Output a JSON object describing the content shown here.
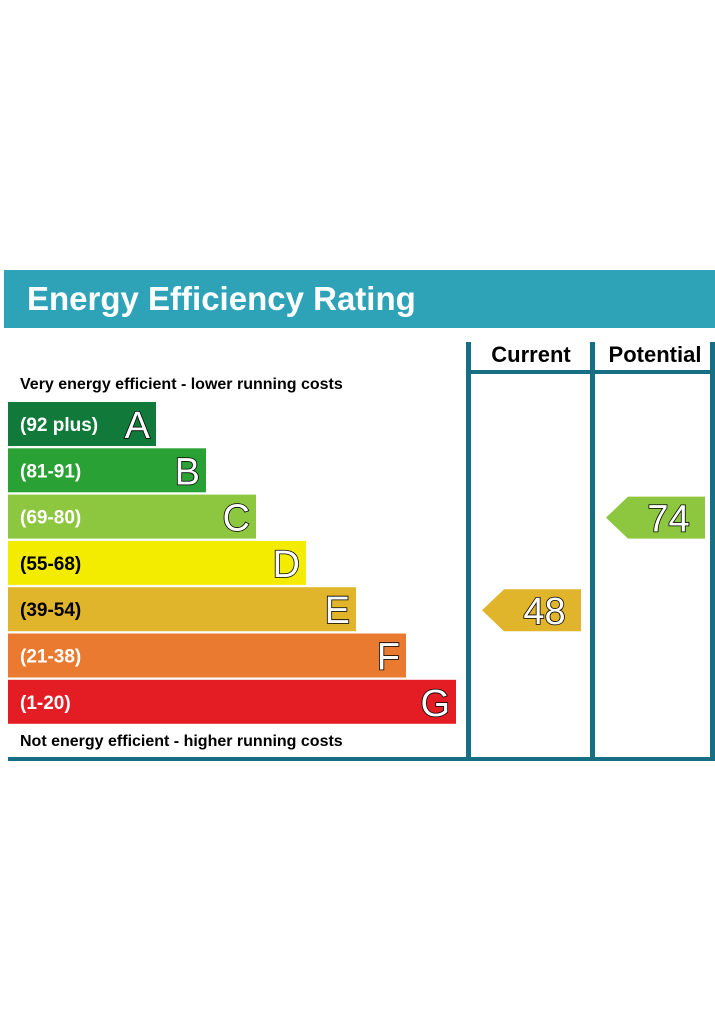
{
  "chart_data": {
    "type": "bar",
    "title": "Energy Efficiency Rating",
    "columns": [
      "Current",
      "Potential"
    ],
    "top_note": "Very energy efficient - lower running costs",
    "bottom_note": "Not energy efficient - higher running costs",
    "bands": [
      {
        "letter": "A",
        "range": "(92 plus)",
        "min": 92,
        "max": 100,
        "color": "#117a3a",
        "dark_text": false
      },
      {
        "letter": "B",
        "range": "(81-91)",
        "min": 81,
        "max": 91,
        "color": "#2aa134",
        "dark_text": false
      },
      {
        "letter": "C",
        "range": "(69-80)",
        "min": 69,
        "max": 80,
        "color": "#8dc63f",
        "dark_text": false
      },
      {
        "letter": "D",
        "range": "(55-68)",
        "min": 55,
        "max": 68,
        "color": "#f4ec00",
        "dark_text": true
      },
      {
        "letter": "E",
        "range": "(39-54)",
        "min": 39,
        "max": 54,
        "color": "#e0b52b",
        "dark_text": true
      },
      {
        "letter": "F",
        "range": "(21-38)",
        "min": 21,
        "max": 38,
        "color": "#ea7a30",
        "dark_text": false
      },
      {
        "letter": "G",
        "range": "(1-20)",
        "min": 1,
        "max": 20,
        "color": "#e31d23",
        "dark_text": false
      }
    ],
    "current": {
      "value": 48,
      "band": "E",
      "color": "#e0b52b"
    },
    "potential": {
      "value": 74,
      "band": "C",
      "color": "#8dc63f"
    },
    "colors": {
      "header": "#2ea3b7",
      "frame": "#176f84"
    }
  }
}
